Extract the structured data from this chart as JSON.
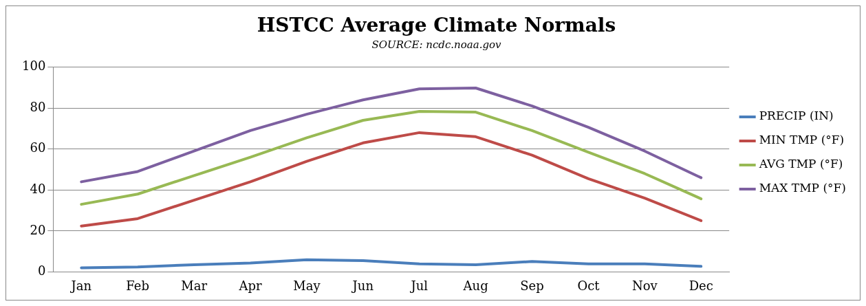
{
  "chart_data": {
    "type": "line",
    "title": "HSTCC Average Climate Normals",
    "subtitle": "SOURCE: ncdc.noaa.gov",
    "categories": [
      "Jan",
      "Feb",
      "Mar",
      "Apr",
      "May",
      "Jun",
      "Jul",
      "Aug",
      "Sep",
      "Oct",
      "Nov",
      "Dec"
    ],
    "series": [
      {
        "name": "PRECIP (IN)",
        "color": "#4a7ebb",
        "values": [
          2.0,
          2.4,
          3.5,
          4.3,
          5.9,
          5.5,
          3.9,
          3.5,
          5.1,
          3.9,
          3.9,
          2.7
        ]
      },
      {
        "name": "MIN TMP (°F)",
        "color": "#be4b48",
        "values": [
          22.4,
          26,
          35,
          44,
          54,
          63,
          68,
          66,
          57,
          45.5,
          36,
          25
        ]
      },
      {
        "name": "AVG TMP (°F)",
        "color": "#98b954",
        "values": [
          33,
          38,
          47,
          56,
          65.5,
          74,
          78.4,
          78,
          69,
          58.4,
          48,
          35.7
        ]
      },
      {
        "name": "MAX TMP (°F)",
        "color": "#7d60a0",
        "values": [
          44,
          49,
          59,
          69,
          77,
          84,
          89.4,
          89.8,
          81,
          70.6,
          59,
          46
        ]
      }
    ],
    "ylim": [
      0,
      100
    ],
    "yticks": [
      0,
      20,
      40,
      60,
      80,
      100
    ],
    "grid": "y",
    "legend": "right",
    "marker": "none",
    "line_style": "solid"
  }
}
